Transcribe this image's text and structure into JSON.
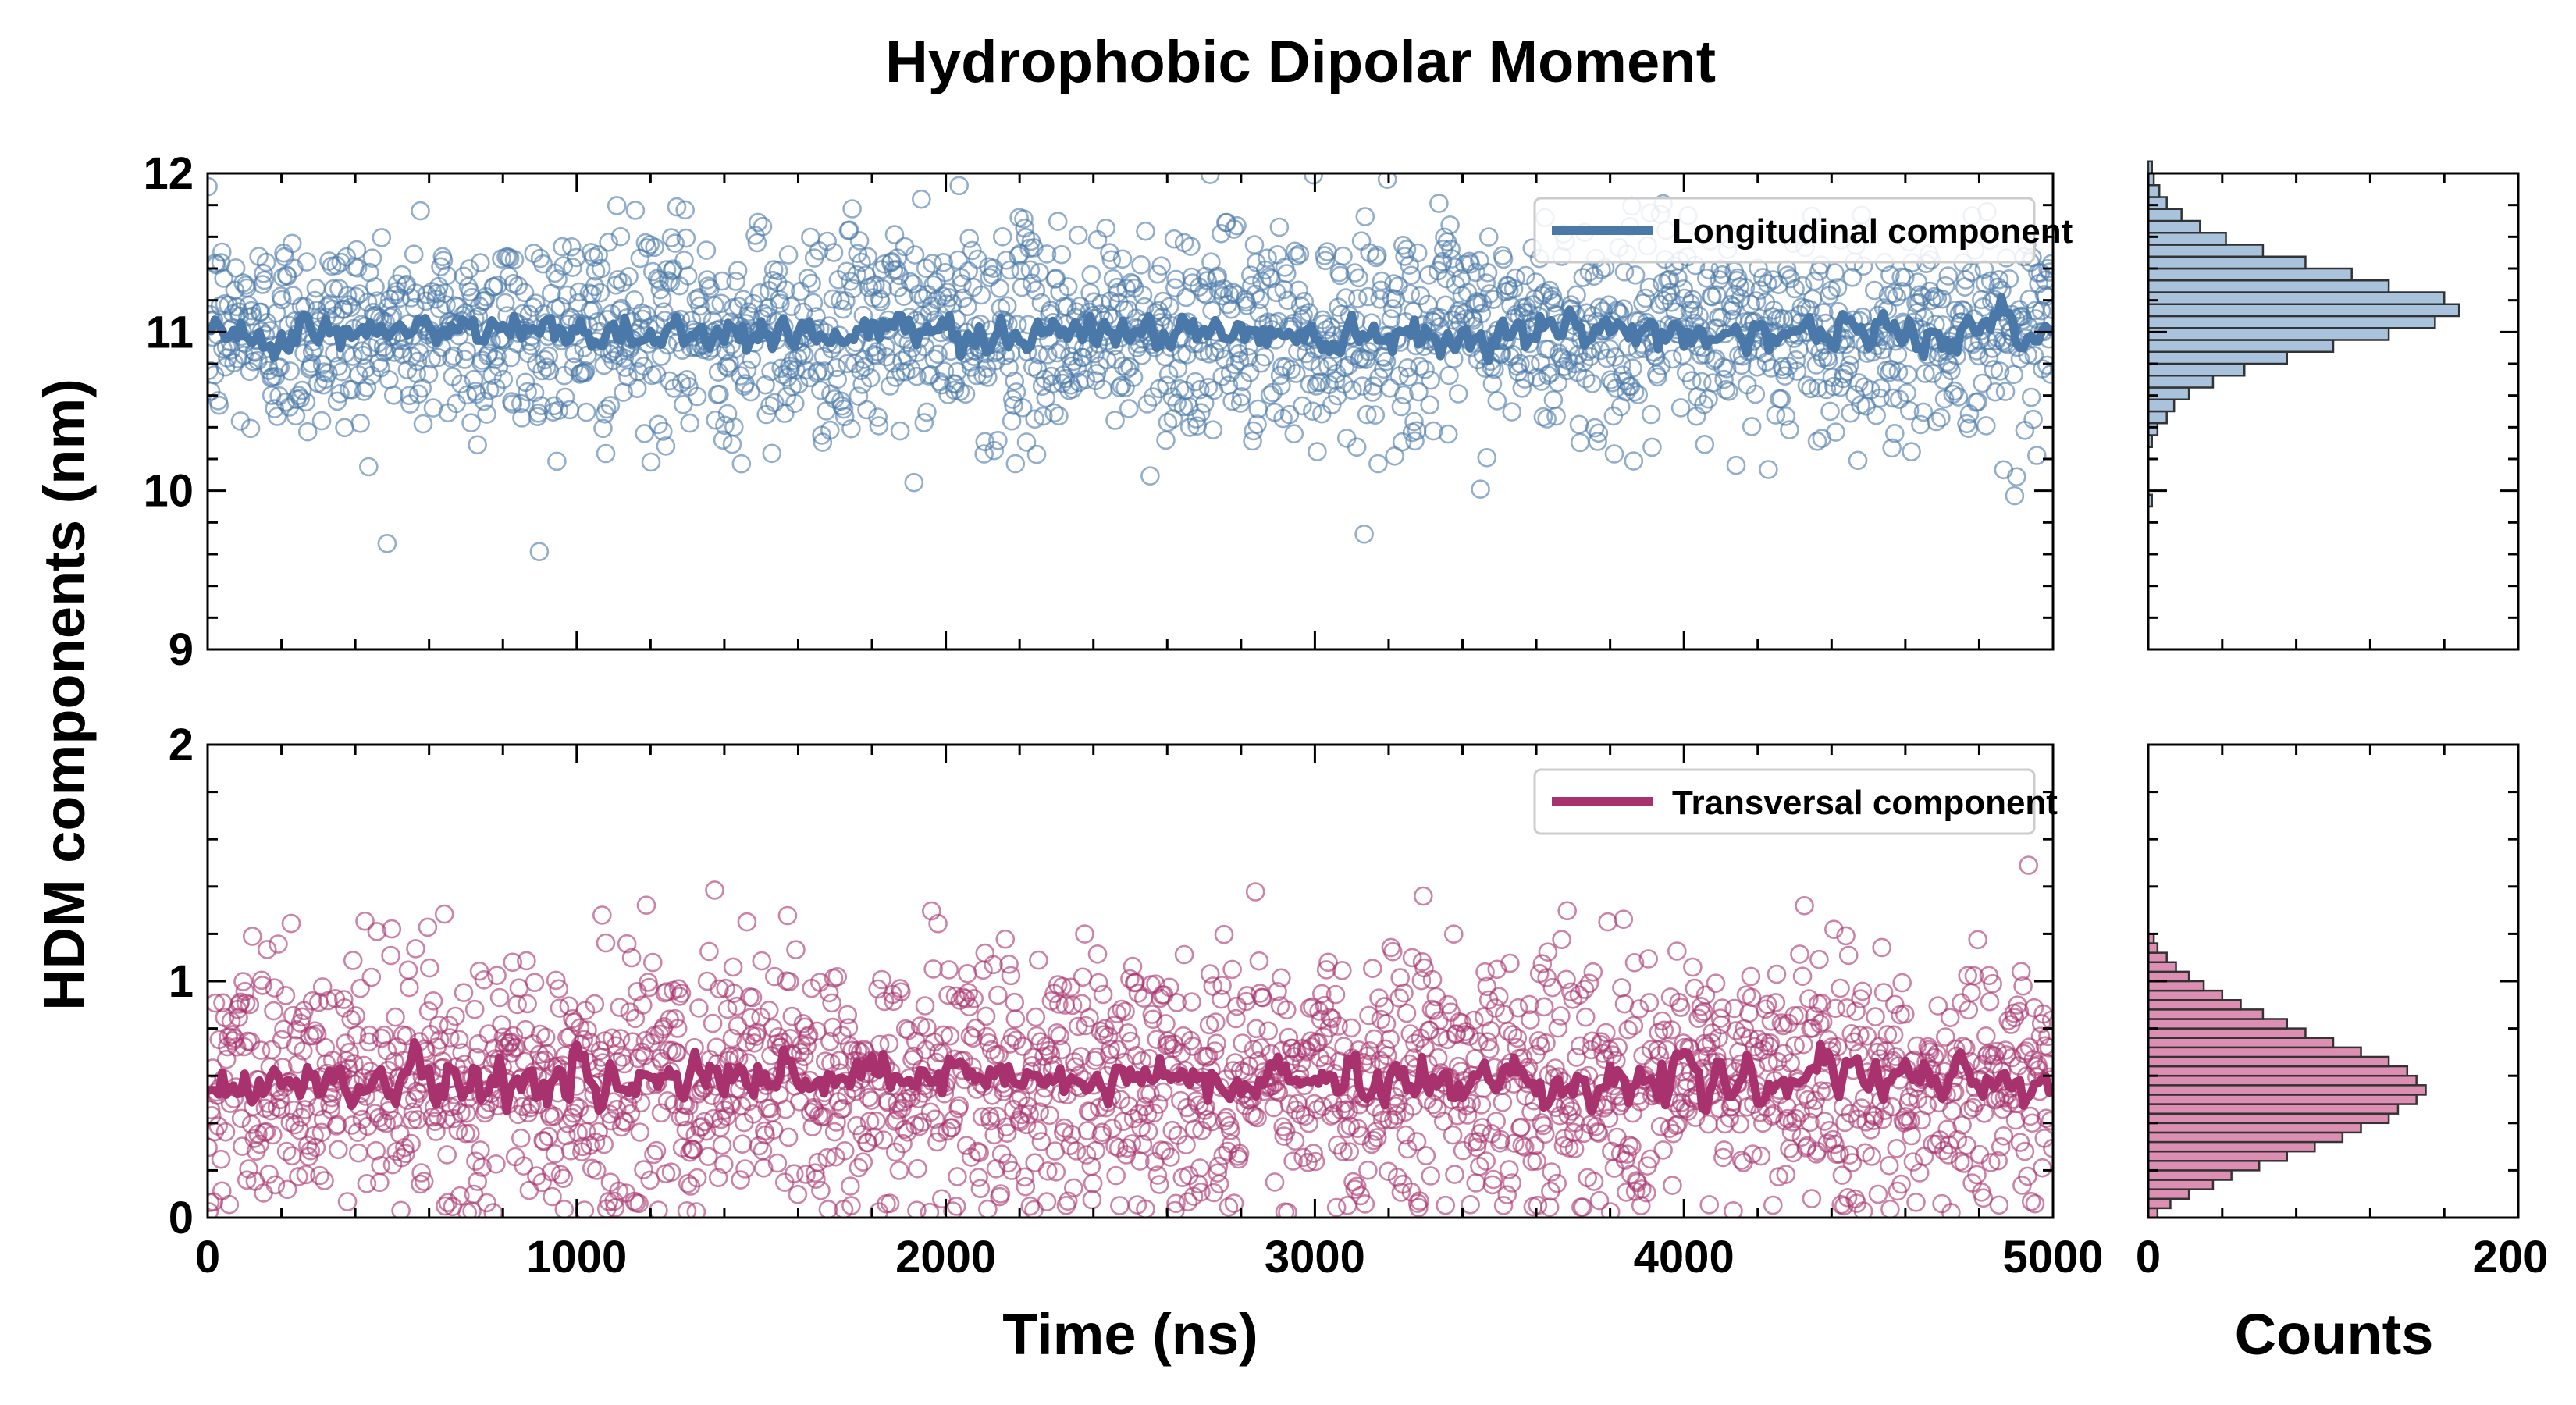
{
  "title": "Hydrophobic Dipolar Moment",
  "ylabel": "HDM components (nm)",
  "xlabel": "Time (ns)",
  "hist_xlabel": "Counts",
  "colors": {
    "longitudinal": "#4a78a8",
    "longitudinal_hist": "#a9c3dd",
    "transversal": "#a8326e",
    "transversal_hist": "#dd8fb3"
  },
  "chart_data": [
    {
      "type": "scatter",
      "panel": "top",
      "xlim": [
        0,
        5000
      ],
      "ylim": [
        9,
        12
      ],
      "yticks": [
        9,
        10,
        11,
        12
      ],
      "legend": "Longitudinal component",
      "legend_placement": "top-right",
      "grid": false,
      "points": {
        "count": 2000,
        "mean": 11.0,
        "spread": 0.33
      },
      "running_mean": {
        "mean": 11.0,
        "fluctuation": 0.1
      },
      "histogram": {
        "bin_width": 0.075,
        "bin_start": 9.9,
        "counts": [
          2,
          0,
          0,
          0,
          0,
          2,
          5,
          10,
          14,
          22,
          35,
          52,
          75,
          100,
          130,
          155,
          168,
          160,
          130,
          110,
          85,
          62,
          42,
          28,
          18,
          10,
          6,
          3,
          2
        ],
        "xlim": [
          0,
          200
        ],
        "xticks": [
          0,
          200
        ]
      }
    },
    {
      "type": "scatter",
      "panel": "bottom",
      "xlim": [
        0,
        5000
      ],
      "ylim": [
        0,
        2
      ],
      "yticks": [
        0,
        1,
        2
      ],
      "xticks": [
        0,
        1000,
        2000,
        3000,
        4000,
        5000
      ],
      "legend": "Transversal component",
      "legend_placement": "top-right",
      "grid": false,
      "points": {
        "count": 2000,
        "mean": 0.58,
        "spread": 0.28
      },
      "running_mean": {
        "mean": 0.58,
        "fluctuation": 0.08
      },
      "histogram": {
        "bin_width": 0.04,
        "bin_start": 0.0,
        "counts": [
          5,
          12,
          22,
          35,
          45,
          60,
          75,
          90,
          105,
          115,
          130,
          135,
          145,
          150,
          145,
          140,
          130,
          115,
          100,
          85,
          75,
          62,
          50,
          40,
          30,
          22,
          15,
          10,
          5,
          3
        ],
        "xlim": [
          0,
          200
        ],
        "xticks": [
          0,
          200
        ]
      }
    }
  ]
}
